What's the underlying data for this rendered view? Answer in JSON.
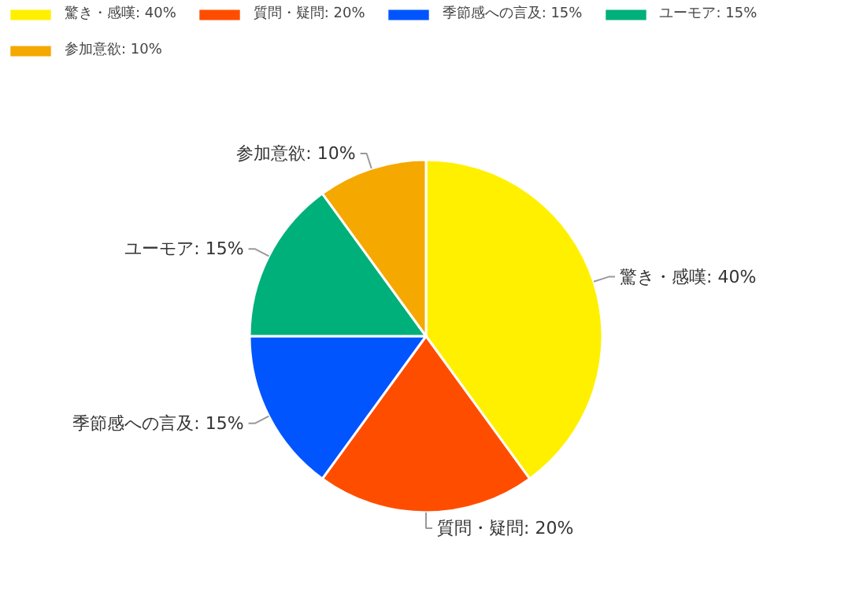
{
  "chart_data": {
    "type": "pie",
    "categories": [
      "驚き・感嘆: 40%",
      "質問・疑問: 20%",
      "季節感への言及: 15%",
      "ユーモア: 15%",
      "参加意欲: 10%"
    ],
    "values": [
      40,
      20,
      15,
      15,
      10
    ],
    "colors": [
      "#fff000",
      "#ff4d00",
      "#0055ff",
      "#00b07a",
      "#f5a800"
    ],
    "legend": "top left",
    "value_labels": [
      "驚き・感嘆: 40%",
      "質問・疑問: 20%",
      "季節感への言及: 15%",
      "ユーモア: 15%",
      "参加意欲: 10%"
    ]
  }
}
